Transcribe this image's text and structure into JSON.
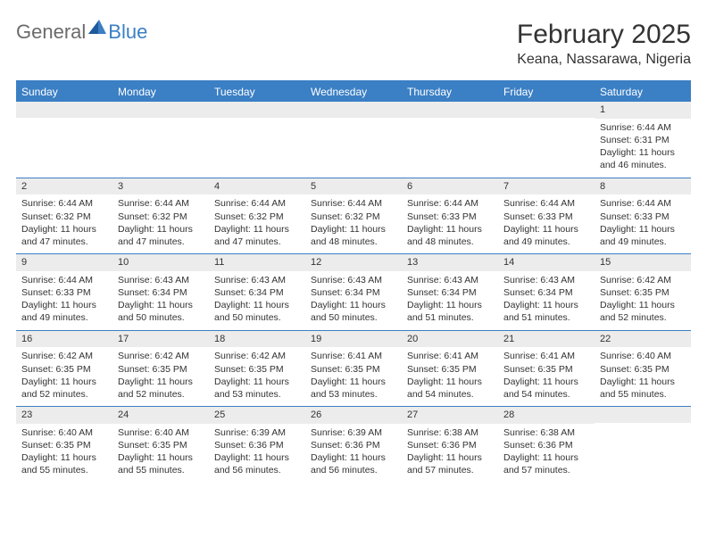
{
  "logo": {
    "general": "General",
    "blue": "Blue"
  },
  "title": {
    "month_year": "February 2025",
    "location": "Keana, Nassarawa, Nigeria"
  },
  "colors": {
    "header_bg": "#3b7fc4",
    "daynum_bg": "#ececec",
    "text": "#333333",
    "logo_gray": "#6b6b6b",
    "logo_blue": "#3b7fc4",
    "page_bg": "#ffffff"
  },
  "day_headers": [
    "Sunday",
    "Monday",
    "Tuesday",
    "Wednesday",
    "Thursday",
    "Friday",
    "Saturday"
  ],
  "weeks": [
    [
      {
        "n": "",
        "sunrise": "",
        "sunset": "",
        "daylight": ""
      },
      {
        "n": "",
        "sunrise": "",
        "sunset": "",
        "daylight": ""
      },
      {
        "n": "",
        "sunrise": "",
        "sunset": "",
        "daylight": ""
      },
      {
        "n": "",
        "sunrise": "",
        "sunset": "",
        "daylight": ""
      },
      {
        "n": "",
        "sunrise": "",
        "sunset": "",
        "daylight": ""
      },
      {
        "n": "",
        "sunrise": "",
        "sunset": "",
        "daylight": ""
      },
      {
        "n": "1",
        "sunrise": "Sunrise: 6:44 AM",
        "sunset": "Sunset: 6:31 PM",
        "daylight": "Daylight: 11 hours and 46 minutes."
      }
    ],
    [
      {
        "n": "2",
        "sunrise": "Sunrise: 6:44 AM",
        "sunset": "Sunset: 6:32 PM",
        "daylight": "Daylight: 11 hours and 47 minutes."
      },
      {
        "n": "3",
        "sunrise": "Sunrise: 6:44 AM",
        "sunset": "Sunset: 6:32 PM",
        "daylight": "Daylight: 11 hours and 47 minutes."
      },
      {
        "n": "4",
        "sunrise": "Sunrise: 6:44 AM",
        "sunset": "Sunset: 6:32 PM",
        "daylight": "Daylight: 11 hours and 47 minutes."
      },
      {
        "n": "5",
        "sunrise": "Sunrise: 6:44 AM",
        "sunset": "Sunset: 6:32 PM",
        "daylight": "Daylight: 11 hours and 48 minutes."
      },
      {
        "n": "6",
        "sunrise": "Sunrise: 6:44 AM",
        "sunset": "Sunset: 6:33 PM",
        "daylight": "Daylight: 11 hours and 48 minutes."
      },
      {
        "n": "7",
        "sunrise": "Sunrise: 6:44 AM",
        "sunset": "Sunset: 6:33 PM",
        "daylight": "Daylight: 11 hours and 49 minutes."
      },
      {
        "n": "8",
        "sunrise": "Sunrise: 6:44 AM",
        "sunset": "Sunset: 6:33 PM",
        "daylight": "Daylight: 11 hours and 49 minutes."
      }
    ],
    [
      {
        "n": "9",
        "sunrise": "Sunrise: 6:44 AM",
        "sunset": "Sunset: 6:33 PM",
        "daylight": "Daylight: 11 hours and 49 minutes."
      },
      {
        "n": "10",
        "sunrise": "Sunrise: 6:43 AM",
        "sunset": "Sunset: 6:34 PM",
        "daylight": "Daylight: 11 hours and 50 minutes."
      },
      {
        "n": "11",
        "sunrise": "Sunrise: 6:43 AM",
        "sunset": "Sunset: 6:34 PM",
        "daylight": "Daylight: 11 hours and 50 minutes."
      },
      {
        "n": "12",
        "sunrise": "Sunrise: 6:43 AM",
        "sunset": "Sunset: 6:34 PM",
        "daylight": "Daylight: 11 hours and 50 minutes."
      },
      {
        "n": "13",
        "sunrise": "Sunrise: 6:43 AM",
        "sunset": "Sunset: 6:34 PM",
        "daylight": "Daylight: 11 hours and 51 minutes."
      },
      {
        "n": "14",
        "sunrise": "Sunrise: 6:43 AM",
        "sunset": "Sunset: 6:34 PM",
        "daylight": "Daylight: 11 hours and 51 minutes."
      },
      {
        "n": "15",
        "sunrise": "Sunrise: 6:42 AM",
        "sunset": "Sunset: 6:35 PM",
        "daylight": "Daylight: 11 hours and 52 minutes."
      }
    ],
    [
      {
        "n": "16",
        "sunrise": "Sunrise: 6:42 AM",
        "sunset": "Sunset: 6:35 PM",
        "daylight": "Daylight: 11 hours and 52 minutes."
      },
      {
        "n": "17",
        "sunrise": "Sunrise: 6:42 AM",
        "sunset": "Sunset: 6:35 PM",
        "daylight": "Daylight: 11 hours and 52 minutes."
      },
      {
        "n": "18",
        "sunrise": "Sunrise: 6:42 AM",
        "sunset": "Sunset: 6:35 PM",
        "daylight": "Daylight: 11 hours and 53 minutes."
      },
      {
        "n": "19",
        "sunrise": "Sunrise: 6:41 AM",
        "sunset": "Sunset: 6:35 PM",
        "daylight": "Daylight: 11 hours and 53 minutes."
      },
      {
        "n": "20",
        "sunrise": "Sunrise: 6:41 AM",
        "sunset": "Sunset: 6:35 PM",
        "daylight": "Daylight: 11 hours and 54 minutes."
      },
      {
        "n": "21",
        "sunrise": "Sunrise: 6:41 AM",
        "sunset": "Sunset: 6:35 PM",
        "daylight": "Daylight: 11 hours and 54 minutes."
      },
      {
        "n": "22",
        "sunrise": "Sunrise: 6:40 AM",
        "sunset": "Sunset: 6:35 PM",
        "daylight": "Daylight: 11 hours and 55 minutes."
      }
    ],
    [
      {
        "n": "23",
        "sunrise": "Sunrise: 6:40 AM",
        "sunset": "Sunset: 6:35 PM",
        "daylight": "Daylight: 11 hours and 55 minutes."
      },
      {
        "n": "24",
        "sunrise": "Sunrise: 6:40 AM",
        "sunset": "Sunset: 6:35 PM",
        "daylight": "Daylight: 11 hours and 55 minutes."
      },
      {
        "n": "25",
        "sunrise": "Sunrise: 6:39 AM",
        "sunset": "Sunset: 6:36 PM",
        "daylight": "Daylight: 11 hours and 56 minutes."
      },
      {
        "n": "26",
        "sunrise": "Sunrise: 6:39 AM",
        "sunset": "Sunset: 6:36 PM",
        "daylight": "Daylight: 11 hours and 56 minutes."
      },
      {
        "n": "27",
        "sunrise": "Sunrise: 6:38 AM",
        "sunset": "Sunset: 6:36 PM",
        "daylight": "Daylight: 11 hours and 57 minutes."
      },
      {
        "n": "28",
        "sunrise": "Sunrise: 6:38 AM",
        "sunset": "Sunset: 6:36 PM",
        "daylight": "Daylight: 11 hours and 57 minutes."
      },
      {
        "n": "",
        "sunrise": "",
        "sunset": "",
        "daylight": ""
      }
    ]
  ]
}
